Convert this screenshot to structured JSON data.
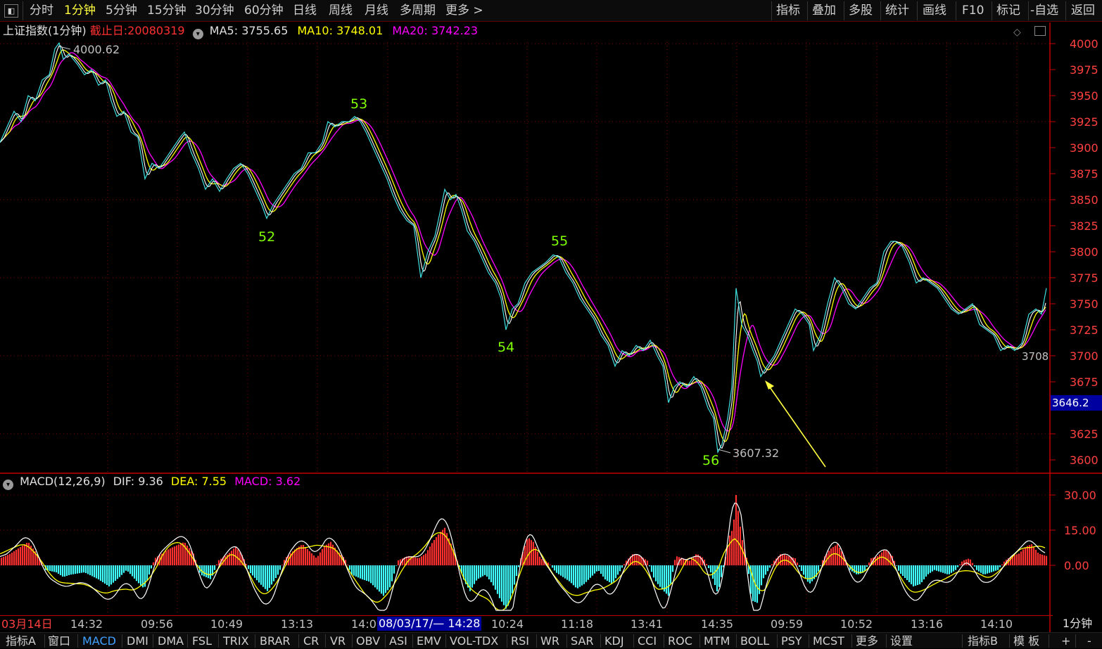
{
  "toolbar": {
    "left_items": [
      "分时",
      "1分钟",
      "5分钟",
      "15分钟",
      "30分钟",
      "60分钟",
      "日线",
      "周线",
      "月线",
      "多周期",
      "更多 >"
    ],
    "active_index": 1,
    "right_items": [
      "指标",
      "叠加",
      "多股",
      "统计",
      "画线",
      "F10",
      "标记",
      "-自选",
      "返回"
    ]
  },
  "price_legend": {
    "name": "上证指数(1分钟)",
    "cutoff_label": "截止日:",
    "cutoff_date": "20080319",
    "ma5_label": "MA5:",
    "ma5_value": "3755.65",
    "ma10_label": "MA10:",
    "ma10_value": "3748.01",
    "ma20_label": "MA20:",
    "ma20_value": "3742.23"
  },
  "macd_legend": {
    "name": "MACD(12,26,9)",
    "dif_label": "DIF:",
    "dif_value": "9.36",
    "dea_label": "DEA:",
    "dea_value": "7.55",
    "macd_label": "MACD:",
    "macd_value": "3.62"
  },
  "colors": {
    "price_line": "#ffffff",
    "price_line_alt": "#40e0e0",
    "ma5": "#ffffff",
    "ma10": "#ffff00",
    "ma20": "#ff00ff",
    "grid": "#800000",
    "axis": "#c00000",
    "wave_label": "#80ff00",
    "macd_up": "#ff3030",
    "macd_down": "#40ffff",
    "arrow": "#ffff40",
    "price_axis_text": "#ff4040"
  },
  "price_axis": {
    "ticks": [
      4000,
      3975,
      3950,
      3925,
      3900,
      3875,
      3850,
      3825,
      3800,
      3775,
      3750,
      3725,
      3700,
      3675,
      3650,
      3625,
      3600
    ],
    "labels": [
      "4000",
      "3975",
      "3950",
      "3925",
      "3900",
      "3875",
      "3850",
      "3825",
      "3800",
      "3775",
      "3750",
      "3725",
      "3700",
      "3675",
      "",
      "3625",
      "3600"
    ],
    "current_price": "3646.2"
  },
  "macd_axis": {
    "ticks": [
      30,
      15,
      0
    ],
    "labels": [
      "30.00",
      "15.00",
      "0.00"
    ]
  },
  "annotations": {
    "high_label": "4000.62",
    "low_label": "3607.32",
    "last_label": "3708",
    "waves": [
      "53",
      "52",
      "55",
      "54",
      "56"
    ]
  },
  "time_axis": {
    "labels": [
      "03月14日",
      "14:32",
      "09:56",
      "10:49",
      "13:13",
      "14:0",
      "10:24",
      "11:18",
      "13:41",
      "14:35",
      "09:59",
      "10:52",
      "13:16",
      "14:10"
    ],
    "cursor_date": "08/03/17/— 14:28",
    "period": "1分钟"
  },
  "bottombar": {
    "items": [
      "指标A",
      "窗口",
      "MACD",
      "DMI",
      "DMA",
      "FSL",
      "TRIX",
      "BRAR",
      "CR",
      "VR",
      "OBV",
      "ASI",
      "EMV",
      "VOL-TDX",
      "RSI",
      "WR",
      "SAR",
      "KDJ",
      "CCI",
      "ROC",
      "MTM",
      "BOLL",
      "PSY",
      "MCST",
      "更多",
      "设置"
    ],
    "active_index": 2,
    "right_items": [
      "指标B",
      "模 板",
      "+",
      "-"
    ]
  },
  "chart_data": {
    "type": "line",
    "title": "上证指数(1分钟)",
    "ylim": [
      3590,
      4010
    ],
    "price_path": [
      [
        0,
        3905
      ],
      [
        10,
        3920
      ],
      [
        20,
        3935
      ],
      [
        30,
        3925
      ],
      [
        40,
        3950
      ],
      [
        50,
        3945
      ],
      [
        60,
        3965
      ],
      [
        70,
        3970
      ],
      [
        78,
        3995
      ],
      [
        84,
        4000.62
      ],
      [
        90,
        3985
      ],
      [
        98,
        3990
      ],
      [
        110,
        3980
      ],
      [
        120,
        3970
      ],
      [
        130,
        3975
      ],
      [
        140,
        3960
      ],
      [
        150,
        3965
      ],
      [
        158,
        3945
      ],
      [
        166,
        3930
      ],
      [
        176,
        3935
      ],
      [
        186,
        3915
      ],
      [
        196,
        3910
      ],
      [
        206,
        3870
      ],
      [
        216,
        3885
      ],
      [
        226,
        3880
      ],
      [
        236,
        3890
      ],
      [
        246,
        3900
      ],
      [
        256,
        3910
      ],
      [
        262,
        3915
      ],
      [
        272,
        3895
      ],
      [
        282,
        3880
      ],
      [
        292,
        3860
      ],
      [
        302,
        3870
      ],
      [
        312,
        3858
      ],
      [
        322,
        3870
      ],
      [
        332,
        3880
      ],
      [
        342,
        3885
      ],
      [
        352,
        3875
      ],
      [
        362,
        3860
      ],
      [
        372,
        3845
      ],
      [
        379,
        3832
      ],
      [
        388,
        3845
      ],
      [
        398,
        3855
      ],
      [
        408,
        3865
      ],
      [
        418,
        3875
      ],
      [
        428,
        3880
      ],
      [
        438,
        3895
      ],
      [
        448,
        3895
      ],
      [
        458,
        3905
      ],
      [
        466,
        3925
      ],
      [
        476,
        3920
      ],
      [
        486,
        3925
      ],
      [
        496,
        3925
      ],
      [
        504,
        3930
      ],
      [
        512,
        3925
      ],
      [
        520,
        3915
      ],
      [
        530,
        3900
      ],
      [
        540,
        3885
      ],
      [
        550,
        3870
      ],
      [
        558,
        3855
      ],
      [
        568,
        3840
      ],
      [
        578,
        3830
      ],
      [
        588,
        3825
      ],
      [
        598,
        3775
      ],
      [
        608,
        3800
      ],
      [
        618,
        3815
      ],
      [
        626,
        3840
      ],
      [
        632,
        3860
      ],
      [
        640,
        3850
      ],
      [
        648,
        3855
      ],
      [
        656,
        3840
      ],
      [
        664,
        3820
      ],
      [
        674,
        3810
      ],
      [
        684,
        3795
      ],
      [
        694,
        3780
      ],
      [
        704,
        3770
      ],
      [
        712,
        3755
      ],
      [
        719,
        3725
      ],
      [
        728,
        3745
      ],
      [
        736,
        3750
      ],
      [
        746,
        3770
      ],
      [
        756,
        3780
      ],
      [
        766,
        3785
      ],
      [
        776,
        3790
      ],
      [
        786,
        3797
      ],
      [
        794,
        3795
      ],
      [
        804,
        3780
      ],
      [
        814,
        3770
      ],
      [
        824,
        3755
      ],
      [
        834,
        3745
      ],
      [
        844,
        3735
      ],
      [
        854,
        3720
      ],
      [
        864,
        3710
      ],
      [
        874,
        3690
      ],
      [
        884,
        3705
      ],
      [
        894,
        3700
      ],
      [
        904,
        3710
      ],
      [
        914,
        3705
      ],
      [
        924,
        3715
      ],
      [
        934,
        3700
      ],
      [
        942,
        3690
      ],
      [
        950,
        3655
      ],
      [
        958,
        3670
      ],
      [
        966,
        3675
      ],
      [
        976,
        3670
      ],
      [
        986,
        3680
      ],
      [
        996,
        3670
      ],
      [
        1006,
        3650
      ],
      [
        1014,
        3640
      ],
      [
        1020,
        3607.32
      ],
      [
        1026,
        3615
      ],
      [
        1034,
        3640
      ],
      [
        1040,
        3670
      ],
      [
        1046,
        3765
      ],
      [
        1054,
        3730
      ],
      [
        1062,
        3720
      ],
      [
        1070,
        3705
      ],
      [
        1076,
        3695
      ],
      [
        1081,
        3680
      ],
      [
        1090,
        3690
      ],
      [
        1100,
        3700
      ],
      [
        1110,
        3715
      ],
      [
        1120,
        3730
      ],
      [
        1130,
        3745
      ],
      [
        1140,
        3740
      ],
      [
        1150,
        3730
      ],
      [
        1156,
        3705
      ],
      [
        1166,
        3720
      ],
      [
        1176,
        3750
      ],
      [
        1186,
        3775
      ],
      [
        1196,
        3765
      ],
      [
        1206,
        3750
      ],
      [
        1216,
        3745
      ],
      [
        1226,
        3755
      ],
      [
        1236,
        3765
      ],
      [
        1246,
        3770
      ],
      [
        1256,
        3800
      ],
      [
        1266,
        3810
      ],
      [
        1272,
        3810
      ],
      [
        1282,
        3805
      ],
      [
        1292,
        3790
      ],
      [
        1302,
        3770
      ],
      [
        1312,
        3775
      ],
      [
        1322,
        3770
      ],
      [
        1332,
        3765
      ],
      [
        1342,
        3755
      ],
      [
        1352,
        3745
      ],
      [
        1362,
        3740
      ],
      [
        1372,
        3745
      ],
      [
        1382,
        3750
      ],
      [
        1392,
        3730
      ],
      [
        1402,
        3725
      ],
      [
        1412,
        3720
      ],
      [
        1422,
        3705
      ],
      [
        1432,
        3710
      ],
      [
        1442,
        3705
      ],
      [
        1452,
        3712
      ],
      [
        1462,
        3740
      ],
      [
        1472,
        3745
      ],
      [
        1480,
        3740
      ],
      [
        1487,
        3765
      ]
    ],
    "macd_hist_envelope": [
      [
        0,
        3
      ],
      [
        15,
        5
      ],
      [
        30,
        8
      ],
      [
        40,
        10
      ],
      [
        55,
        4
      ],
      [
        65,
        -2
      ],
      [
        80,
        -3
      ],
      [
        90,
        -5
      ],
      [
        100,
        -4
      ],
      [
        120,
        -3
      ],
      [
        140,
        -6
      ],
      [
        155,
        -9
      ],
      [
        170,
        -5
      ],
      [
        180,
        -2
      ],
      [
        195,
        -7
      ],
      [
        205,
        -10
      ],
      [
        220,
        3
      ],
      [
        240,
        7
      ],
      [
        255,
        9
      ],
      [
        262,
        10
      ],
      [
        275,
        5
      ],
      [
        285,
        -4
      ],
      [
        300,
        -6
      ],
      [
        310,
        2
      ],
      [
        325,
        5
      ],
      [
        335,
        8
      ],
      [
        345,
        4
      ],
      [
        355,
        -3
      ],
      [
        370,
        -8
      ],
      [
        380,
        -11
      ],
      [
        395,
        -4
      ],
      [
        405,
        3
      ],
      [
        420,
        7
      ],
      [
        430,
        9
      ],
      [
        440,
        6
      ],
      [
        450,
        3
      ],
      [
        460,
        8
      ],
      [
        470,
        10
      ],
      [
        480,
        6
      ],
      [
        490,
        3
      ],
      [
        500,
        -4
      ],
      [
        515,
        -6
      ],
      [
        525,
        -7
      ],
      [
        535,
        -10
      ],
      [
        545,
        -13
      ],
      [
        555,
        -9
      ],
      [
        565,
        2
      ],
      [
        580,
        4
      ],
      [
        595,
        3
      ],
      [
        605,
        5
      ],
      [
        615,
        10
      ],
      [
        625,
        14
      ],
      [
        632,
        16
      ],
      [
        640,
        10
      ],
      [
        650,
        2
      ],
      [
        660,
        -7
      ],
      [
        668,
        -11
      ],
      [
        678,
        -6
      ],
      [
        690,
        -4
      ],
      [
        700,
        -8
      ],
      [
        710,
        -14
      ],
      [
        720,
        -19
      ],
      [
        728,
        -12
      ],
      [
        740,
        3
      ],
      [
        750,
        12
      ],
      [
        758,
        10
      ],
      [
        768,
        3
      ],
      [
        780,
        1
      ],
      [
        790,
        -3
      ],
      [
        800,
        -5
      ],
      [
        810,
        -7
      ],
      [
        820,
        -10
      ],
      [
        830,
        -8
      ],
      [
        840,
        -5
      ],
      [
        850,
        -2
      ],
      [
        860,
        -6
      ],
      [
        870,
        -8
      ],
      [
        880,
        -3
      ],
      [
        890,
        2
      ],
      [
        900,
        5
      ],
      [
        910,
        4
      ],
      [
        920,
        2
      ],
      [
        930,
        -6
      ],
      [
        940,
        -10
      ],
      [
        950,
        -13
      ],
      [
        960,
        4
      ],
      [
        970,
        3
      ],
      [
        980,
        2
      ],
      [
        990,
        5
      ],
      [
        1000,
        3
      ],
      [
        1010,
        -3
      ],
      [
        1020,
        -12
      ],
      [
        1030,
        2
      ],
      [
        1036,
        12
      ],
      [
        1042,
        16
      ],
      [
        1046,
        30
      ],
      [
        1054,
        12
      ],
      [
        1062,
        2
      ],
      [
        1068,
        -15
      ],
      [
        1076,
        -16
      ],
      [
        1084,
        -6
      ],
      [
        1092,
        -2
      ],
      [
        1100,
        2
      ],
      [
        1110,
        5
      ],
      [
        1120,
        4
      ],
      [
        1130,
        3
      ],
      [
        1140,
        -3
      ],
      [
        1150,
        -8
      ],
      [
        1160,
        -5
      ],
      [
        1170,
        3
      ],
      [
        1180,
        7
      ],
      [
        1190,
        9
      ],
      [
        1198,
        5
      ],
      [
        1208,
        -2
      ],
      [
        1218,
        -4
      ],
      [
        1228,
        -3
      ],
      [
        1238,
        3
      ],
      [
        1248,
        4
      ],
      [
        1258,
        7
      ],
      [
        1268,
        4
      ],
      [
        1278,
        -3
      ],
      [
        1288,
        -6
      ],
      [
        1298,
        -9
      ],
      [
        1308,
        -8
      ],
      [
        1318,
        -4
      ],
      [
        1328,
        -2
      ],
      [
        1338,
        -3
      ],
      [
        1348,
        -4
      ],
      [
        1358,
        -2
      ],
      [
        1368,
        2
      ],
      [
        1378,
        3
      ],
      [
        1388,
        -2
      ],
      [
        1398,
        -4
      ],
      [
        1408,
        -3
      ],
      [
        1418,
        -2
      ],
      [
        1428,
        2
      ],
      [
        1438,
        4
      ],
      [
        1448,
        5
      ],
      [
        1458,
        8
      ],
      [
        1466,
        9
      ],
      [
        1476,
        5
      ],
      [
        1487,
        4
      ]
    ]
  }
}
